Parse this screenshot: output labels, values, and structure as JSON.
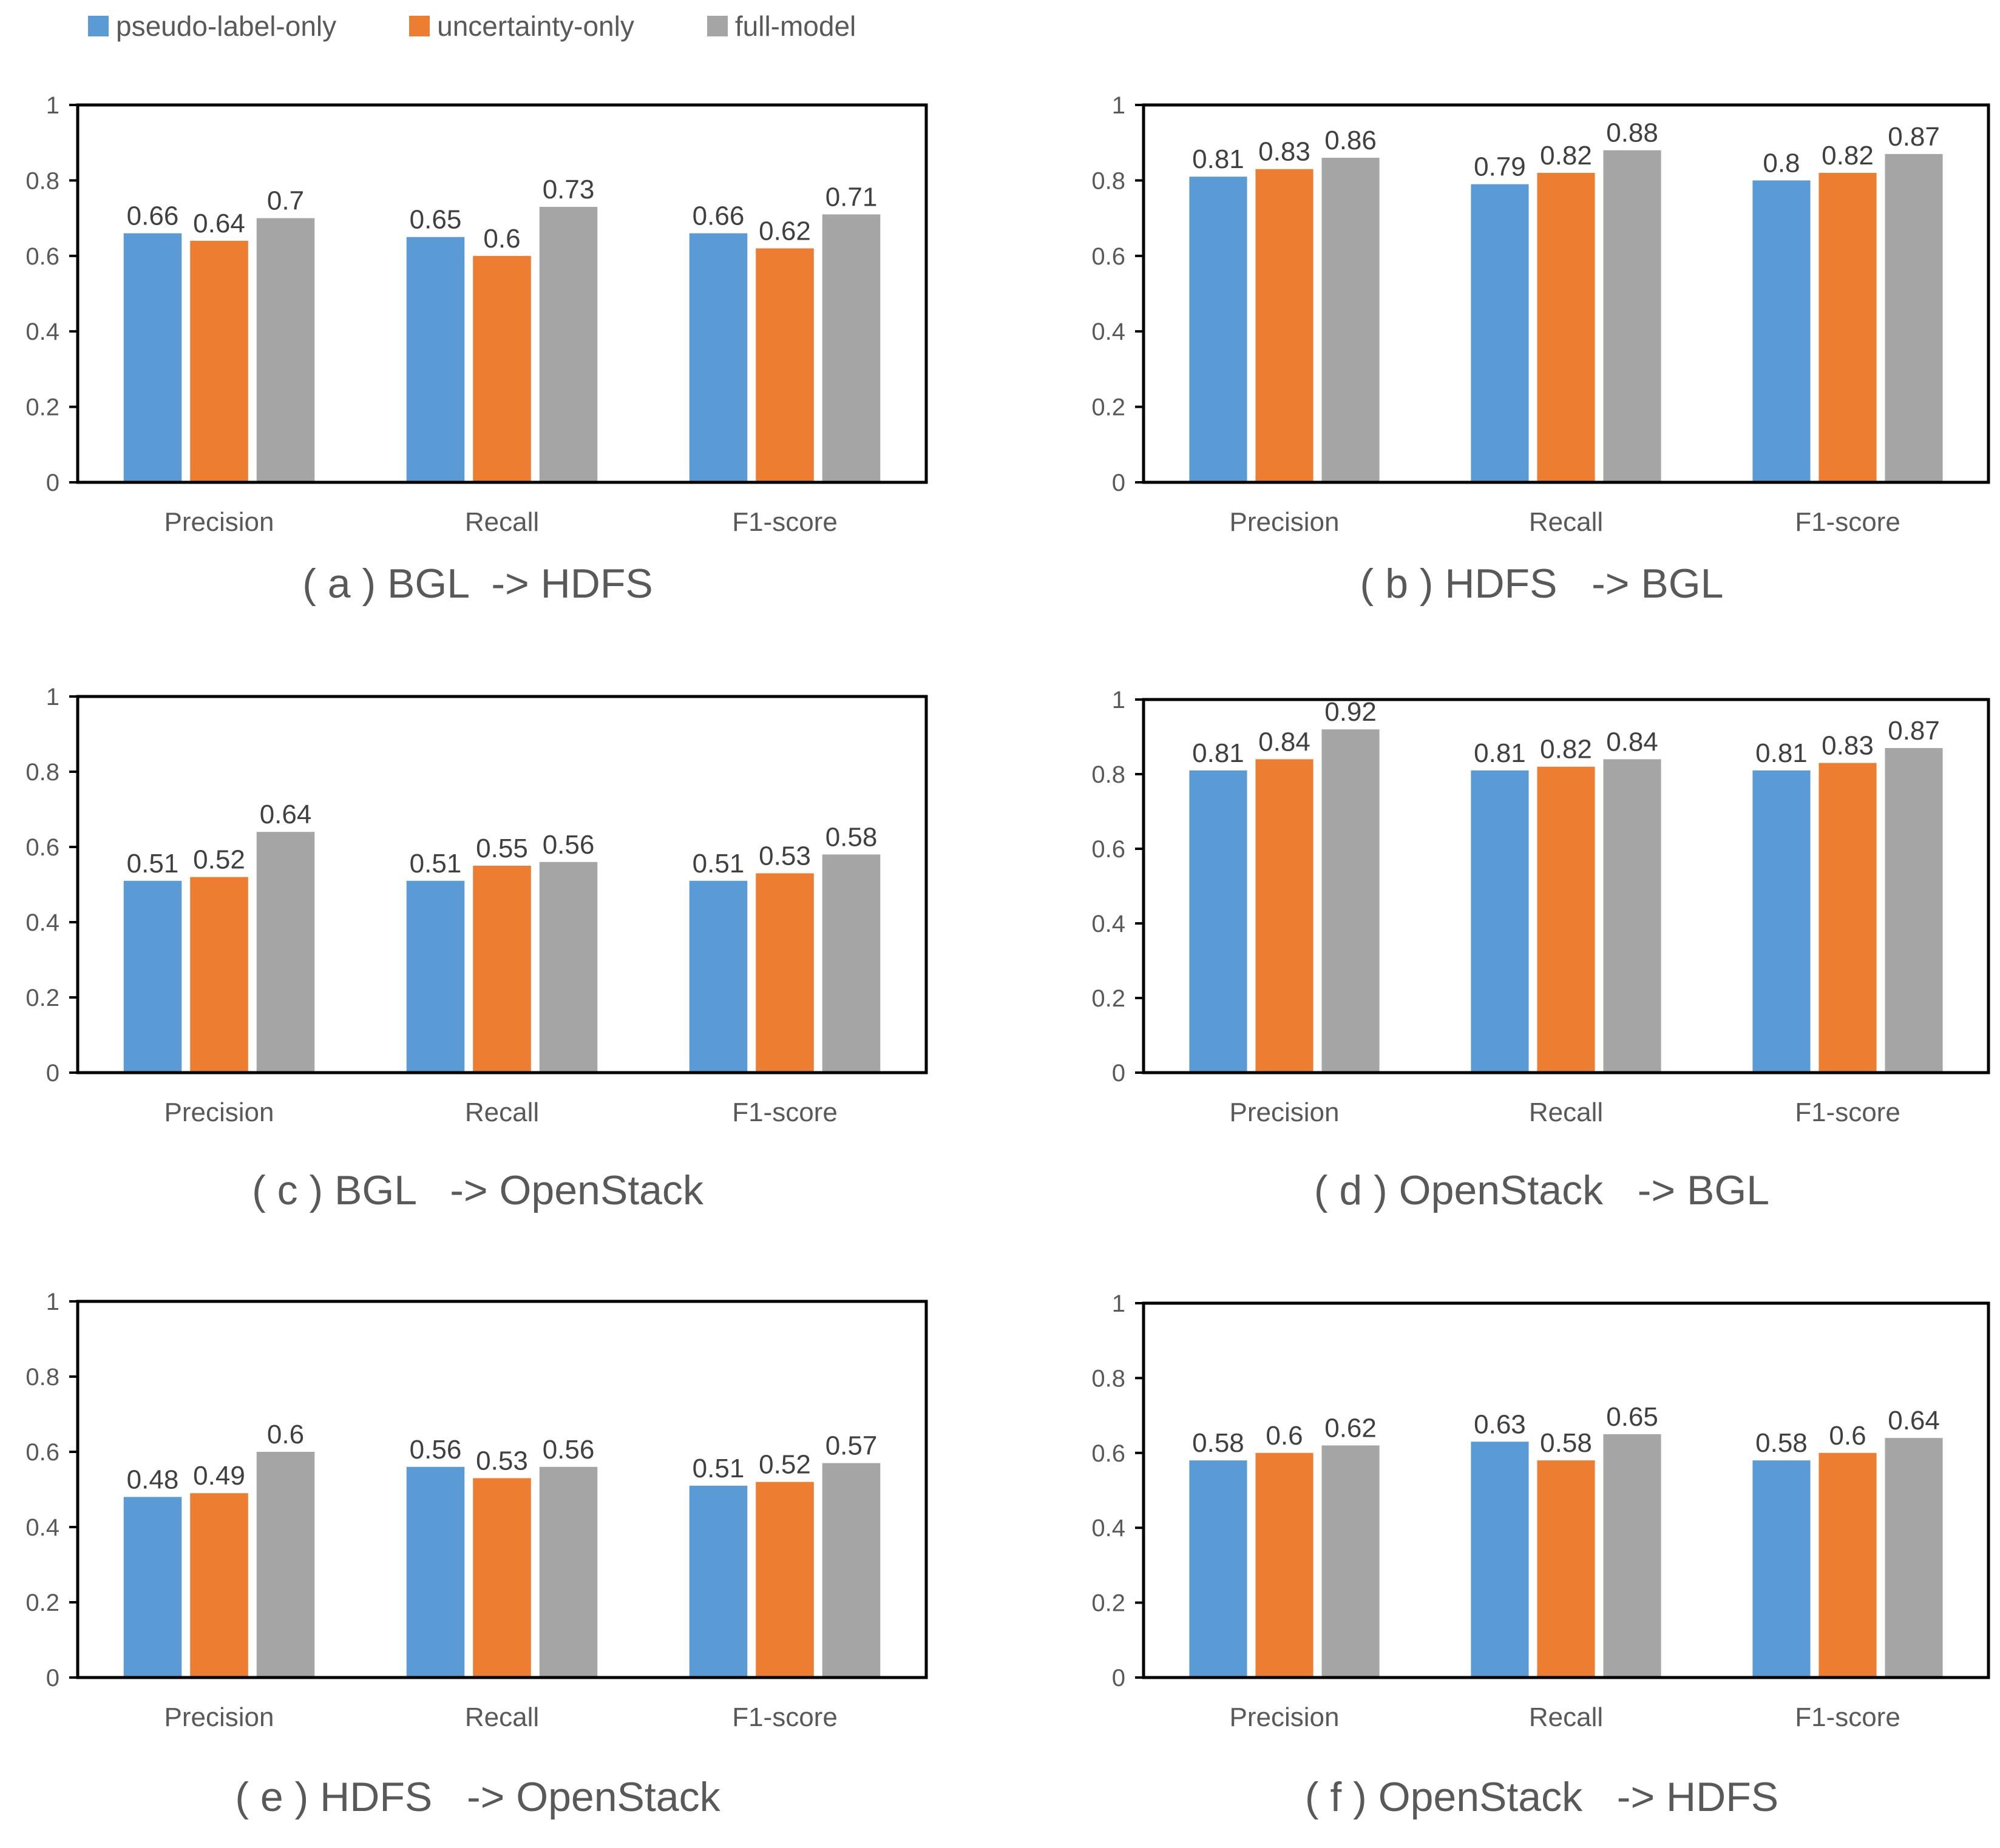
{
  "legend": {
    "items": [
      {
        "label": "pseudo-label-only",
        "color": "#5B9BD5"
      },
      {
        "label": "uncertainty-only",
        "color": "#ED7D31"
      },
      {
        "label": "full-model",
        "color": "#A5A5A5"
      }
    ]
  },
  "chart_data": [
    {
      "type": "bar",
      "title": "( a ) BGL  -> HDFS",
      "categories": [
        "Precision",
        "Recall",
        "F1-score"
      ],
      "ylim": [
        0,
        1
      ],
      "yticks": [
        "0",
        "0.2",
        "0.4",
        "0.6",
        "0.8",
        "1"
      ],
      "series": [
        {
          "name": "pseudo-label-only",
          "values": [
            0.66,
            0.65,
            0.66
          ],
          "labels": [
            "0.66",
            "0.65",
            "0.66"
          ]
        },
        {
          "name": "uncertainty-only",
          "values": [
            0.64,
            0.6,
            0.62
          ],
          "labels": [
            "0.64",
            "0.6",
            "0.62"
          ]
        },
        {
          "name": "full-model",
          "values": [
            0.7,
            0.73,
            0.71
          ],
          "labels": [
            "0.7",
            "0.73",
            "0.71"
          ]
        }
      ]
    },
    {
      "type": "bar",
      "title": "( b ) HDFS   -> BGL",
      "categories": [
        "Precision",
        "Recall",
        "F1-score"
      ],
      "ylim": [
        0,
        1
      ],
      "yticks": [
        "0",
        "0.2",
        "0.4",
        "0.6",
        "0.8",
        "1"
      ],
      "series": [
        {
          "name": "pseudo-label-only",
          "values": [
            0.81,
            0.79,
            0.8
          ],
          "labels": [
            "0.81",
            "0.79",
            "0.8"
          ]
        },
        {
          "name": "uncertainty-only",
          "values": [
            0.83,
            0.82,
            0.82
          ],
          "labels": [
            "0.83",
            "0.82",
            "0.82"
          ]
        },
        {
          "name": "full-model",
          "values": [
            0.86,
            0.88,
            0.87
          ],
          "labels": [
            "0.86",
            "0.88",
            "0.87"
          ]
        }
      ]
    },
    {
      "type": "bar",
      "title": "( c ) BGL   -> OpenStack",
      "categories": [
        "Precision",
        "Recall",
        "F1-score"
      ],
      "ylim": [
        0,
        1
      ],
      "yticks": [
        "0",
        "0.2",
        "0.4",
        "0.6",
        "0.8",
        "1"
      ],
      "series": [
        {
          "name": "pseudo-label-only",
          "values": [
            0.51,
            0.51,
            0.51
          ],
          "labels": [
            "0.51",
            "0.51",
            "0.51"
          ]
        },
        {
          "name": "uncertainty-only",
          "values": [
            0.52,
            0.55,
            0.53
          ],
          "labels": [
            "0.52",
            "0.55",
            "0.53"
          ]
        },
        {
          "name": "full-model",
          "values": [
            0.64,
            0.56,
            0.58
          ],
          "labels": [
            "0.64",
            "0.56",
            "0.58"
          ]
        }
      ]
    },
    {
      "type": "bar",
      "title": "( d ) OpenStack   -> BGL",
      "categories": [
        "Precision",
        "Recall",
        "F1-score"
      ],
      "ylim": [
        0,
        1
      ],
      "yticks": [
        "0",
        "0.2",
        "0.4",
        "0.6",
        "0.8",
        "1"
      ],
      "series": [
        {
          "name": "pseudo-label-only",
          "values": [
            0.81,
            0.81,
            0.81
          ],
          "labels": [
            "0.81",
            "0.81",
            "0.81"
          ]
        },
        {
          "name": "uncertainty-only",
          "values": [
            0.84,
            0.82,
            0.83
          ],
          "labels": [
            "0.84",
            "0.82",
            "0.83"
          ]
        },
        {
          "name": "full-model",
          "values": [
            0.92,
            0.84,
            0.87
          ],
          "labels": [
            "0.92",
            "0.84",
            "0.87"
          ]
        }
      ]
    },
    {
      "type": "bar",
      "title": "( e ) HDFS   -> OpenStack",
      "categories": [
        "Precision",
        "Recall",
        "F1-score"
      ],
      "ylim": [
        0,
        1
      ],
      "yticks": [
        "0",
        "0.2",
        "0.4",
        "0.6",
        "0.8",
        "1"
      ],
      "series": [
        {
          "name": "pseudo-label-only",
          "values": [
            0.48,
            0.56,
            0.51
          ],
          "labels": [
            "0.48",
            "0.56",
            "0.51"
          ]
        },
        {
          "name": "uncertainty-only",
          "values": [
            0.49,
            0.53,
            0.52
          ],
          "labels": [
            "0.49",
            "0.53",
            "0.52"
          ]
        },
        {
          "name": "full-model",
          "values": [
            0.6,
            0.56,
            0.57
          ],
          "labels": [
            "0.6",
            "0.56",
            "0.57"
          ]
        }
      ]
    },
    {
      "type": "bar",
      "title": "( f ) OpenStack   -> HDFS",
      "categories": [
        "Precision",
        "Recall",
        "F1-score"
      ],
      "ylim": [
        0,
        1
      ],
      "yticks": [
        "0",
        "0.2",
        "0.4",
        "0.6",
        "0.8",
        "1"
      ],
      "series": [
        {
          "name": "pseudo-label-only",
          "values": [
            0.58,
            0.63,
            0.58
          ],
          "labels": [
            "0.58",
            "0.63",
            "0.58"
          ]
        },
        {
          "name": "uncertainty-only",
          "values": [
            0.6,
            0.58,
            0.6
          ],
          "labels": [
            "0.6",
            "0.58",
            "0.6"
          ]
        },
        {
          "name": "full-model",
          "values": [
            0.62,
            0.65,
            0.64
          ],
          "labels": [
            "0.62",
            "0.65",
            "0.64"
          ]
        }
      ]
    }
  ]
}
